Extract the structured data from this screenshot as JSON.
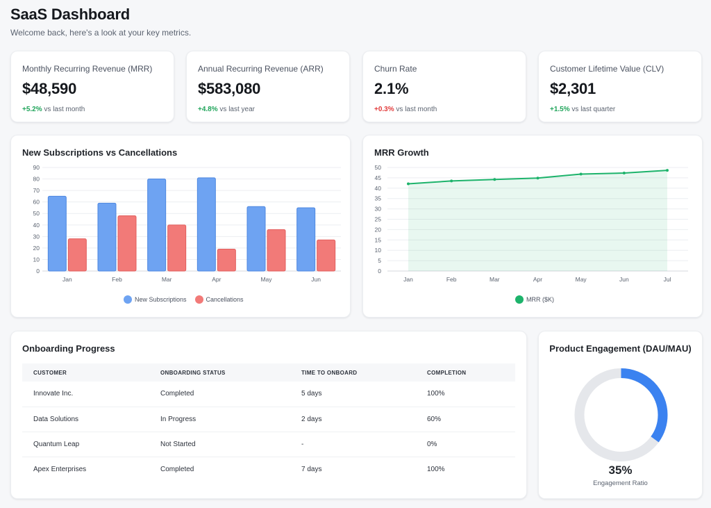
{
  "header": {
    "title": "SaaS Dashboard",
    "subtitle": "Welcome back, here's a look at your key metrics."
  },
  "kpis": [
    {
      "label": "Monthly Recurring Revenue (MRR)",
      "value": "$48,590",
      "delta": "+5.2%",
      "delta_suffix": "vs last month",
      "trend": "positive"
    },
    {
      "label": "Annual Recurring Revenue (ARR)",
      "value": "$583,080",
      "delta": "+4.8%",
      "delta_suffix": "vs last year",
      "trend": "positive"
    },
    {
      "label": "Churn Rate",
      "value": "2.1%",
      "delta": "+0.3%",
      "delta_suffix": "vs last month",
      "trend": "negative"
    },
    {
      "label": "Customer Lifetime Value (CLV)",
      "value": "$2,301",
      "delta": "+1.5%",
      "delta_suffix": "vs last quarter",
      "trend": "positive"
    }
  ],
  "colors": {
    "new_subscriptions": "#6ea3f2",
    "cancellations": "#f27a78",
    "mrr_line": "#1db36b",
    "donut_active": "#3b82f0",
    "donut_track": "#e5e7eb"
  },
  "chart_data": [
    {
      "type": "bar",
      "title": "New Subscriptions vs Cancellations",
      "categories": [
        "Jan",
        "Feb",
        "Mar",
        "Apr",
        "May",
        "Jun"
      ],
      "series": [
        {
          "name": "New Subscriptions",
          "values": [
            65,
            59,
            80,
            81,
            56,
            55
          ]
        },
        {
          "name": "Cancellations",
          "values": [
            28,
            48,
            40,
            19,
            36,
            27
          ]
        }
      ],
      "yticks": [
        0,
        10,
        20,
        30,
        40,
        50,
        60,
        70,
        80,
        90
      ],
      "ylim": [
        0,
        90
      ],
      "grid": true,
      "legend": "bottom"
    },
    {
      "type": "area",
      "title": "MRR Growth",
      "categories": [
        "Jan",
        "Feb",
        "Mar",
        "Apr",
        "May",
        "Jun",
        "Jul"
      ],
      "series": [
        {
          "name": "MRR ($K)",
          "values": [
            42.1,
            43.5,
            44.2,
            44.9,
            46.8,
            47.3,
            48.6
          ]
        }
      ],
      "yticks": [
        0,
        5,
        10,
        15,
        20,
        25,
        30,
        35,
        40,
        45,
        50
      ],
      "ylim": [
        0,
        50
      ],
      "grid": true,
      "legend": "bottom"
    },
    {
      "type": "pie",
      "title": "Product Engagement (DAU/MAU)",
      "values": [
        35,
        65
      ],
      "center_value": "35%",
      "center_label": "Engagement Ratio"
    }
  ],
  "onboarding": {
    "title": "Onboarding Progress",
    "columns": [
      "CUSTOMER",
      "ONBOARDING STATUS",
      "TIME TO ONBOARD",
      "COMPLETION"
    ],
    "rows": [
      {
        "customer": "Innovate Inc.",
        "status": "Completed",
        "status_type": "completed",
        "time": "5 days",
        "completion": "100%"
      },
      {
        "customer": "Data Solutions",
        "status": "In Progress",
        "status_type": "progress",
        "time": "2 days",
        "completion": "60%"
      },
      {
        "customer": "Quantum Leap",
        "status": "Not Started",
        "status_type": "notstarted",
        "time": "-",
        "completion": "0%"
      },
      {
        "customer": "Apex Enterprises",
        "status": "Completed",
        "status_type": "completed",
        "time": "7 days",
        "completion": "100%"
      }
    ]
  }
}
